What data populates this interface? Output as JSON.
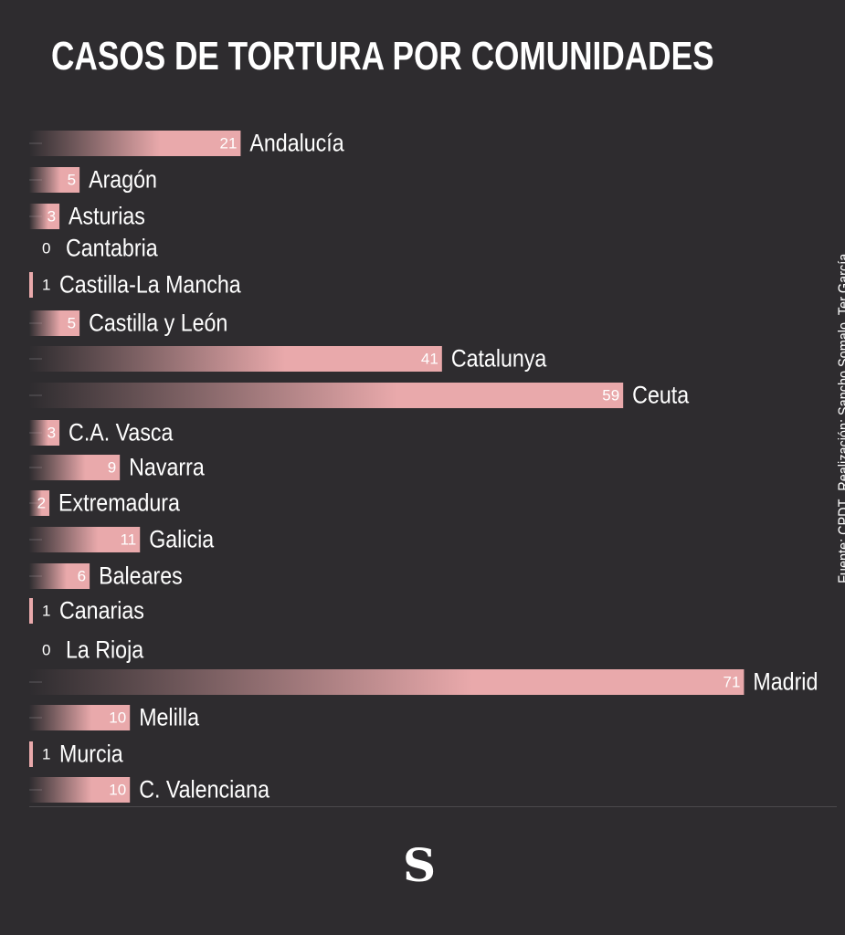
{
  "title": "CASOS DE TORTURA POR COMUNIDADES",
  "source": {
    "fuente": "Fuente: CPDT",
    "realizacion": "Realización: Sancho Somalo, Ter García"
  },
  "logo": "S",
  "colors": {
    "background": "#2e2c2f",
    "bar": "#e9a9ab",
    "text": "#ffffff"
  },
  "chart_data": {
    "type": "bar",
    "orientation": "horizontal",
    "title": "CASOS DE TORTURA POR COMUNIDADES",
    "categories": [
      "Andalucía",
      "Aragón",
      "Asturias",
      "Cantabria",
      "Castilla-La Mancha",
      "Castilla y León",
      "Catalunya",
      "Ceuta",
      "C.A. Vasca",
      "Navarra",
      "Extremadura",
      "Galicia",
      "Baleares",
      "Canarias",
      "La Rioja",
      "Madrid",
      "Melilla",
      "Murcia",
      "C. Valenciana"
    ],
    "values": [
      21,
      5,
      3,
      0,
      1,
      5,
      41,
      59,
      3,
      9,
      2,
      11,
      6,
      1,
      0,
      71,
      10,
      1,
      10
    ],
    "xlim": [
      0,
      71
    ],
    "grid": false,
    "legend": "none"
  }
}
